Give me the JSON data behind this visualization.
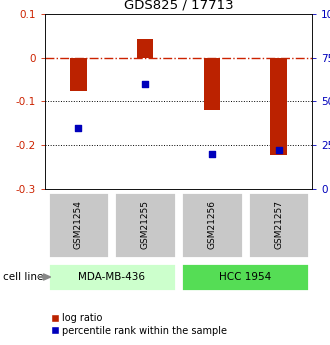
{
  "title": "GDS825 / 17713",
  "samples": [
    "GSM21254",
    "GSM21255",
    "GSM21256",
    "GSM21257"
  ],
  "log_ratios": [
    -0.075,
    0.042,
    -0.12,
    -0.222
  ],
  "percentile_ranks": [
    35,
    60,
    20,
    22
  ],
  "cell_lines": [
    {
      "name": "MDA-MB-436",
      "samples": [
        0,
        1
      ],
      "color": "#ccffcc"
    },
    {
      "name": "HCC 1954",
      "samples": [
        2,
        3
      ],
      "color": "#55dd55"
    }
  ],
  "ylim_left": [
    -0.3,
    0.1
  ],
  "ylim_right": [
    0,
    100
  ],
  "left_ticks": [
    0.1,
    0,
    -0.1,
    -0.2,
    -0.3
  ],
  "right_ticks": [
    100,
    75,
    50,
    25,
    0
  ],
  "bar_color": "#bb2200",
  "dot_color": "#0000bb",
  "dashed_color": "#cc2200",
  "legend_labels": [
    "log ratio",
    "percentile rank within the sample"
  ],
  "bar_width": 0.25,
  "sample_box_color": "#c8c8c8",
  "sample_box_edge": "#ffffff",
  "bg_color": "#ffffff"
}
